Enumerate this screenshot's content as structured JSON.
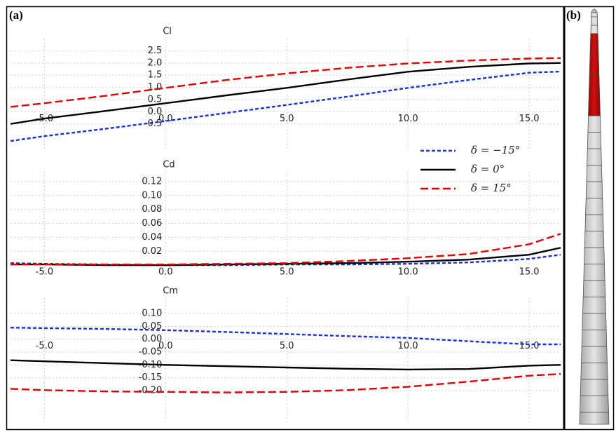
{
  "panel_labels": [
    "(a)",
    "(b)"
  ],
  "chart_data": [
    {
      "type": "line",
      "ylabel": "Cl",
      "x": [
        -6.4,
        -5,
        -2.5,
        0,
        2.5,
        5,
        7.5,
        10,
        12.5,
        15,
        16.3
      ],
      "xlim": [
        -6.4,
        16.3
      ],
      "xticks": [
        {
          "value": -5,
          "label": "-5.0"
        },
        {
          "value": 0,
          "label": "0.0"
        },
        {
          "value": 5,
          "label": "5.0"
        },
        {
          "value": 10,
          "label": "10.0"
        },
        {
          "value": 15,
          "label": "15.0"
        }
      ],
      "ylim": [
        -1.6,
        3.0
      ],
      "yticks": [
        -0.5,
        {
          "value": 0,
          "label": "0.0"
        },
        0.5,
        {
          "value": 1,
          "label": "1.0"
        },
        1.5,
        {
          "value": 2,
          "label": "2.0"
        },
        2.5
      ],
      "grid": true,
      "series": [
        {
          "name": "δ = −15°",
          "color": "#1a2fe0",
          "dash": "short",
          "values": [
            -1.2,
            -1.0,
            -0.7,
            -0.38,
            -0.05,
            0.28,
            0.62,
            0.98,
            1.3,
            1.6,
            1.65
          ]
        },
        {
          "name": "δ = 0°",
          "color": "#000000",
          "dash": "solid",
          "values": [
            -0.5,
            -0.28,
            0.03,
            0.35,
            0.67,
            0.98,
            1.32,
            1.64,
            1.84,
            1.98,
            2.0
          ]
        },
        {
          "name": "δ = 15°",
          "color": "#e00000",
          "dash": "long",
          "values": [
            0.2,
            0.35,
            0.65,
            0.98,
            1.3,
            1.57,
            1.8,
            1.98,
            2.1,
            2.18,
            2.2
          ]
        }
      ]
    },
    {
      "type": "line",
      "ylabel": "Cd",
      "x": [
        -6.4,
        -5,
        -2.5,
        0,
        2.5,
        5,
        7.5,
        10,
        12.5,
        15,
        16.3
      ],
      "xlim": [
        -6.4,
        16.3
      ],
      "xticks": [
        {
          "value": -5,
          "label": "-5.0"
        },
        {
          "value": 0,
          "label": "0.0"
        },
        {
          "value": 5,
          "label": "5.0"
        },
        {
          "value": 10,
          "label": "10.0"
        },
        {
          "value": 15,
          "label": "15.0"
        }
      ],
      "ylim": [
        -0.022,
        0.134
      ],
      "yticks": [
        0.02,
        0.04,
        0.06,
        0.08,
        {
          "value": 0.1,
          "label": "0.10"
        },
        0.12
      ],
      "grid": true,
      "legend": "upper right",
      "series": [
        {
          "name": "δ = −15°",
          "color": "#1a2fe0",
          "dash": "short",
          "values": [
            0.003,
            0.002,
            0.001,
            0,
            0,
            0.001,
            0.001,
            0.002,
            0.004,
            0.009,
            0.015
          ]
        },
        {
          "name": "δ = 0°",
          "color": "#000000",
          "dash": "solid",
          "values": [
            0.001,
            0.001,
            0,
            0,
            0.001,
            0.002,
            0.003,
            0.005,
            0.008,
            0.015,
            0.025
          ]
        },
        {
          "name": "δ = 15°",
          "color": "#e00000",
          "dash": "long",
          "values": [
            0.001,
            0.001,
            0.001,
            0.001,
            0.002,
            0.003,
            0.006,
            0.01,
            0.016,
            0.03,
            0.045
          ]
        }
      ]
    },
    {
      "type": "line",
      "ylabel": "Cm",
      "x": [
        -6.4,
        -5,
        -2.5,
        0,
        2.5,
        5,
        7.5,
        10,
        12.5,
        15,
        16.3
      ],
      "xlim": [
        -6.4,
        16.3
      ],
      "xticks": [
        {
          "value": -5,
          "label": "-5.0"
        },
        {
          "value": 0,
          "label": "0.0"
        },
        {
          "value": 5,
          "label": "5.0"
        },
        {
          "value": 10,
          "label": "10.0"
        },
        {
          "value": 15,
          "label": "15.0"
        }
      ],
      "ylim": [
        -0.32,
        0.16
      ],
      "yticks": [
        {
          "value": 0.1,
          "label": "0.10"
        },
        0.05,
        {
          "value": 0,
          "label": "0.00"
        },
        -0.05,
        {
          "value": -0.1,
          "label": "-0.10"
        },
        -0.15,
        {
          "value": -0.2,
          "label": "-0.20"
        }
      ],
      "grid": true,
      "series": [
        {
          "name": "δ = −15°",
          "color": "#1a2fe0",
          "dash": "short",
          "values": [
            0.045,
            0.043,
            0.04,
            0.035,
            0.028,
            0.02,
            0.012,
            0.005,
            -0.008,
            -0.02,
            -0.02
          ]
        },
        {
          "name": "δ = 0°",
          "color": "#000000",
          "dash": "solid",
          "values": [
            -0.082,
            -0.086,
            -0.093,
            -0.1,
            -0.105,
            -0.11,
            -0.115,
            -0.118,
            -0.116,
            -0.103,
            -0.1
          ]
        },
        {
          "name": "δ = 15°",
          "color": "#e00000",
          "dash": "long",
          "values": [
            -0.193,
            -0.198,
            -0.203,
            -0.205,
            -0.207,
            -0.205,
            -0.198,
            -0.185,
            -0.165,
            -0.142,
            -0.135
          ]
        }
      ]
    }
  ]
}
